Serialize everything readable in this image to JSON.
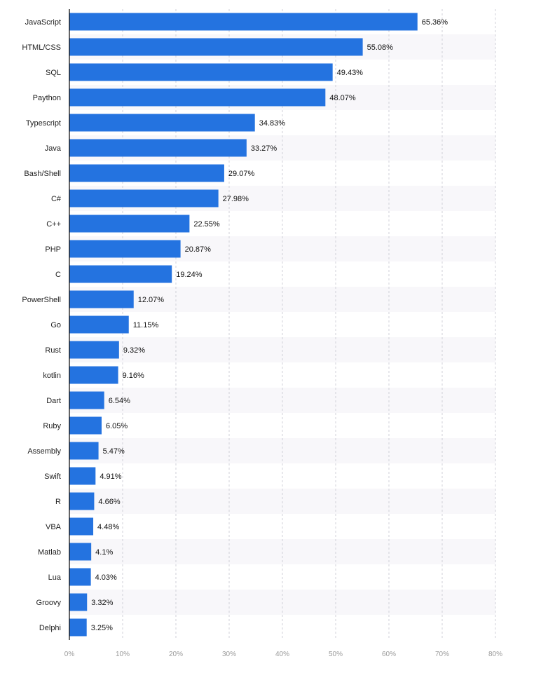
{
  "chart_data": {
    "type": "bar",
    "orientation": "horizontal",
    "categories": [
      "JavaScript",
      "HTML/CSS",
      "SQL",
      "Paython",
      "Typescript",
      "Java",
      "Bash/Shell",
      "C#",
      "C++",
      "PHP",
      "C",
      "PowerShell",
      "Go",
      "Rust",
      "kotlin",
      "Dart",
      "Ruby",
      "Assembly",
      "Swift",
      "R",
      "VBA",
      "Matlab",
      "Lua",
      "Groovy",
      "Delphi"
    ],
    "values": [
      65.36,
      55.08,
      49.43,
      48.07,
      34.83,
      33.27,
      29.07,
      27.98,
      22.55,
      20.87,
      19.24,
      12.07,
      11.15,
      9.32,
      9.16,
      6.54,
      6.05,
      5.47,
      4.91,
      4.66,
      4.48,
      4.1,
      4.03,
      3.32,
      3.25
    ],
    "value_labels": [
      "65.36%",
      "55.08%",
      "49.43%",
      "48.07%",
      "34.83%",
      "33.27%",
      "29.07%",
      "27.98%",
      "22.55%",
      "20.87%",
      "19.24%",
      "12.07%",
      "11.15%",
      "9.32%",
      "9.16%",
      "6.54%",
      "6.05%",
      "5.47%",
      "4.91%",
      "4.66%",
      "4.48%",
      "4.1%",
      "4.03%",
      "3.32%",
      "3.25%"
    ],
    "xlim": [
      0,
      80
    ],
    "x_ticks": [
      "0%",
      "10%",
      "20%",
      "30%",
      "40%",
      "50%",
      "60%",
      "70%",
      "80%"
    ],
    "grid": true,
    "title": "",
    "xlabel": "",
    "ylabel": "",
    "colors": {
      "bar": "#2473e0",
      "band": "#f8f7fa",
      "grid": "#d0d0d8"
    }
  }
}
